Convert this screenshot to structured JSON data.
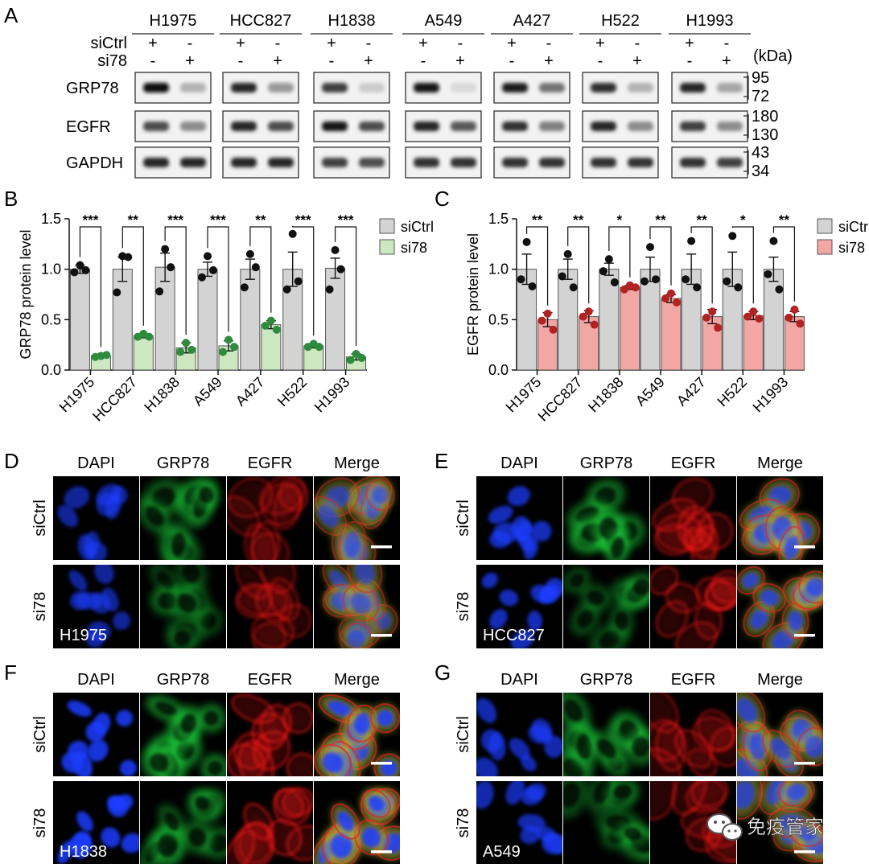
{
  "panel_letters": [
    "A",
    "B",
    "C",
    "D",
    "E",
    "F",
    "G"
  ],
  "western_blot": {
    "cell_lines": [
      "H1975",
      "HCC827",
      "H1838",
      "A549",
      "A427",
      "H522",
      "H1993"
    ],
    "conditions": [
      {
        "label": "siCtrl",
        "signs": [
          "+",
          "-"
        ]
      },
      {
        "label": "si78",
        "signs": [
          "-",
          "+"
        ]
      }
    ],
    "unit_label": "(kDa)",
    "proteins": [
      {
        "name": "GRP78",
        "markers": [
          "95",
          "72"
        ],
        "ctrl": [
          0.95,
          0.85,
          0.75,
          0.9,
          0.88,
          0.82,
          0.85
        ],
        "kd": [
          0.3,
          0.4,
          0.2,
          0.15,
          0.55,
          0.3,
          0.35
        ]
      },
      {
        "name": "EGFR",
        "markers": [
          "180",
          "130"
        ],
        "ctrl": [
          0.7,
          0.85,
          0.9,
          0.85,
          0.8,
          0.85,
          0.75
        ],
        "kd": [
          0.45,
          0.7,
          0.7,
          0.65,
          0.5,
          0.45,
          0.45
        ]
      },
      {
        "name": "GAPDH",
        "markers": [
          "43",
          "34"
        ],
        "ctrl": [
          0.85,
          0.85,
          0.75,
          0.8,
          0.8,
          0.8,
          0.8
        ],
        "kd": [
          0.85,
          0.85,
          0.7,
          0.8,
          0.8,
          0.8,
          0.75
        ]
      }
    ]
  },
  "chart_data": [
    {
      "type": "bar",
      "panel": "B",
      "ylabel": "GRP78 protein level",
      "xlabel": "",
      "ylim": [
        0,
        1.5
      ],
      "yticks": [
        "0.0",
        "0.5",
        "1.0",
        "1.5"
      ],
      "categories": [
        "H1975",
        "HCC827",
        "H1838",
        "A549",
        "A427",
        "H522",
        "H1993"
      ],
      "legend_position": "top-right",
      "series": [
        {
          "name": "siCtrl",
          "color": "#d3d3d3",
          "values": [
            1.0,
            1.0,
            1.02,
            1.0,
            1.0,
            1.0,
            1.01
          ],
          "errors": [
            0.04,
            0.12,
            0.14,
            0.07,
            0.1,
            0.17,
            0.1
          ],
          "points": [
            [
              1.04,
              0.97,
              0.99
            ],
            [
              1.13,
              0.77,
              1.12
            ],
            [
              1.2,
              0.78,
              1.02
            ],
            [
              1.13,
              0.92,
              0.99
            ],
            [
              1.15,
              0.82,
              1.02
            ],
            [
              1.35,
              0.8,
              0.88
            ],
            [
              1.19,
              0.8,
              1.0
            ]
          ],
          "point_color": "#111111"
        },
        {
          "name": "si78",
          "color": "#cde7c0",
          "values": [
            0.14,
            0.34,
            0.22,
            0.24,
            0.45,
            0.24,
            0.13
          ],
          "errors": [
            0.01,
            0.02,
            0.05,
            0.05,
            0.04,
            0.02,
            0.03
          ],
          "points": [
            [
              0.14,
              0.13,
              0.15
            ],
            [
              0.36,
              0.33,
              0.33
            ],
            [
              0.27,
              0.18,
              0.2
            ],
            [
              0.3,
              0.18,
              0.23
            ],
            [
              0.49,
              0.44,
              0.4
            ],
            [
              0.26,
              0.23,
              0.23
            ],
            [
              0.16,
              0.1,
              0.12
            ]
          ],
          "point_color": "#2e8b3e"
        }
      ],
      "significance": [
        "***",
        "**",
        "***",
        "***",
        "**",
        "***",
        "***"
      ]
    },
    {
      "type": "bar",
      "panel": "C",
      "ylabel": "EGFR protein level",
      "xlabel": "",
      "ylim": [
        0,
        1.5
      ],
      "yticks": [
        "0.0",
        "0.5",
        "1.0",
        "1.5"
      ],
      "categories": [
        "H1975",
        "HCC827",
        "H1838",
        "A549",
        "A427",
        "H522",
        "H1993"
      ],
      "legend_position": "top-right",
      "series": [
        {
          "name": "siCtrl",
          "color": "#d3d3d3",
          "values": [
            1.0,
            1.0,
            1.0,
            1.0,
            1.0,
            1.0,
            1.0
          ],
          "errors": [
            0.15,
            0.1,
            0.06,
            0.12,
            0.15,
            0.17,
            0.12
          ],
          "points": [
            [
              1.27,
              0.9,
              0.83
            ],
            [
              1.15,
              0.93,
              0.82
            ],
            [
              1.1,
              0.98,
              0.87
            ],
            [
              1.22,
              0.88,
              0.9
            ],
            [
              1.28,
              0.9,
              0.82
            ],
            [
              1.33,
              0.88,
              0.82
            ],
            [
              1.28,
              0.95,
              0.8
            ]
          ],
          "point_color": "#111111"
        },
        {
          "name": "si78",
          "color": "#f2a7a5",
          "values": [
            0.5,
            0.53,
            0.82,
            0.71,
            0.53,
            0.54,
            0.53
          ],
          "errors": [
            0.07,
            0.06,
            0.02,
            0.04,
            0.07,
            0.04,
            0.05
          ],
          "points": [
            [
              0.56,
              0.49,
              0.4
            ],
            [
              0.58,
              0.53,
              0.45
            ],
            [
              0.84,
              0.8,
              0.82
            ],
            [
              0.76,
              0.71,
              0.67
            ],
            [
              0.58,
              0.52,
              0.42
            ],
            [
              0.58,
              0.53,
              0.51
            ],
            [
              0.6,
              0.52,
              0.46
            ]
          ],
          "point_color": "#b22222"
        }
      ],
      "significance": [
        "**",
        "**",
        "*",
        "**",
        "**",
        "*",
        "**"
      ]
    }
  ],
  "microscopy": {
    "channels": [
      {
        "name": "DAPI",
        "color": "#0a2cff"
      },
      {
        "name": "GRP78",
        "color": "#1fcf3a"
      },
      {
        "name": "EGFR",
        "color": "#ff1a1a"
      },
      {
        "name": "Merge",
        "color": "#c9c23a"
      }
    ],
    "row_labels": [
      "siCtrl",
      "si78"
    ],
    "panels": [
      {
        "letter": "D",
        "cell_line": "H1975",
        "brightness": 0.7
      },
      {
        "letter": "E",
        "cell_line": "HCC827",
        "brightness": 0.85
      },
      {
        "letter": "F",
        "cell_line": "H1838",
        "brightness": 1.0
      },
      {
        "letter": "G",
        "cell_line": "A549",
        "brightness": 0.8
      }
    ]
  },
  "watermark": {
    "text": "免疫管家",
    "icon": "wechat-icon"
  }
}
